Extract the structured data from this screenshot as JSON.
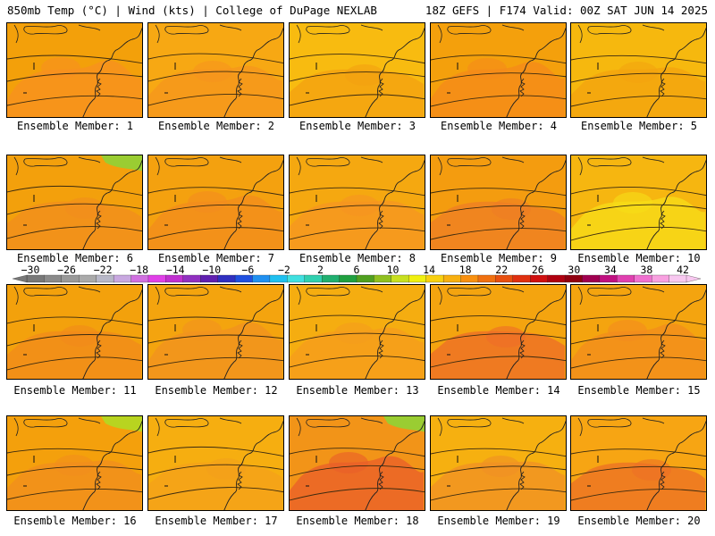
{
  "header": {
    "left": "850mb Temp (°C) | Wind (kts) | College of DuPage NEXLAB",
    "right": "18Z GEFS | F174 Valid: 00Z SAT JUN 14 2025"
  },
  "members": [
    {
      "label": "Ensemble Member: 1",
      "tint": "#f3a00a",
      "alt": "#f89020"
    },
    {
      "label": "Ensemble Member: 2",
      "tint": "#f7a813",
      "alt": "#f6951e"
    },
    {
      "label": "Ensemble Member: 3",
      "tint": "#f8bb10",
      "alt": "#f4a010"
    },
    {
      "label": "Ensemble Member: 4",
      "tint": "#f4a00c",
      "alt": "#f58a1a"
    },
    {
      "label": "Ensemble Member: 5",
      "tint": "#f6b80e",
      "alt": "#f3a30f"
    },
    {
      "label": "Ensemble Member: 6",
      "tint": "#f3a00c",
      "alt": "#f28e1d",
      "accent": "#9acd32"
    },
    {
      "label": "Ensemble Member: 7",
      "tint": "#f4a10f",
      "alt": "#f38c1e"
    },
    {
      "label": "Ensemble Member: 8",
      "tint": "#f5a810",
      "alt": "#f69521"
    },
    {
      "label": "Ensemble Member: 9",
      "tint": "#f49c0f",
      "alt": "#ef7d25"
    },
    {
      "label": "Ensemble Member: 10",
      "tint": "#f6b610",
      "alt": "#f7de18"
    },
    {
      "label": "Ensemble Member: 11",
      "tint": "#f3a10c",
      "alt": "#f28b1b"
    },
    {
      "label": "Ensemble Member: 12",
      "tint": "#f4a40e",
      "alt": "#f29220"
    },
    {
      "label": "Ensemble Member: 13",
      "tint": "#f5ad10",
      "alt": "#f59c1c"
    },
    {
      "label": "Ensemble Member: 14",
      "tint": "#f4a40f",
      "alt": "#ee6c28"
    },
    {
      "label": "Ensemble Member: 15",
      "tint": "#f4a40f",
      "alt": "#f38c1e"
    },
    {
      "label": "Ensemble Member: 16",
      "tint": "#f4a00c",
      "alt": "#f28d1d",
      "accent": "#b8d420"
    },
    {
      "label": "Ensemble Member: 17",
      "tint": "#f6ae10",
      "alt": "#f4a01a"
    },
    {
      "label": "Ensemble Member: 18",
      "tint": "#f29418",
      "alt": "#ea5e2a",
      "accent": "#9acd32"
    },
    {
      "label": "Ensemble Member: 19",
      "tint": "#f6b010",
      "alt": "#f09024"
    },
    {
      "label": "Ensemble Member: 20",
      "tint": "#f7a513",
      "alt": "#ec7026"
    }
  ],
  "colorbar": {
    "labels": [
      "-30",
      "-26",
      "-22",
      "-18",
      "-14",
      "-10",
      "-6",
      "-2",
      "2",
      "6",
      "10",
      "14",
      "18",
      "22",
      "26",
      "30",
      "34",
      "38",
      "42"
    ],
    "colors": [
      "#787878",
      "#8a8a8a",
      "#9a9a9a",
      "#aaaaaa",
      "#b8b8c8",
      "#c8a8e0",
      "#d070e0",
      "#e040e8",
      "#c030d0",
      "#9030c0",
      "#6020b0",
      "#3030c0",
      "#2050e0",
      "#2090f0",
      "#20c0f0",
      "#40e0e0",
      "#30d0b0",
      "#20b070",
      "#20a040",
      "#50a020",
      "#90c020",
      "#c8e020",
      "#f0f010",
      "#f8d010",
      "#f8b010",
      "#f89010",
      "#f07010",
      "#e85010",
      "#e03010",
      "#d01010",
      "#b00010",
      "#900010",
      "#a00050",
      "#c01080",
      "#e040b0",
      "#f070d0",
      "#f8a0e0",
      "#f8c8f0"
    ]
  }
}
